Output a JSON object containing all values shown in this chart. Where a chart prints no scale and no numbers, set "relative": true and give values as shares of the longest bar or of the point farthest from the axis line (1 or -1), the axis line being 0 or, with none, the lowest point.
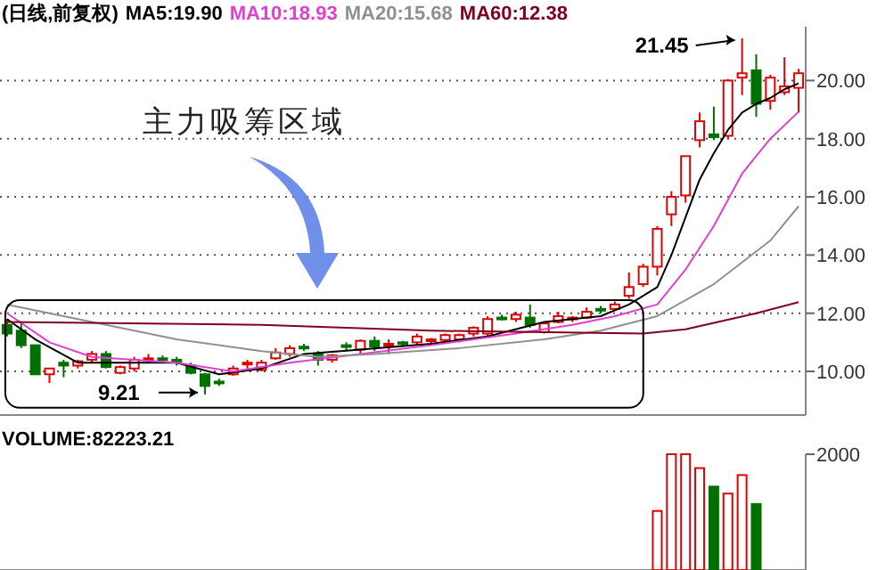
{
  "chart_data": [
    {
      "type": "candlestick",
      "title": "(日线,前复权)",
      "categories": [
        null,
        null,
        null,
        null,
        null,
        null,
        null,
        null,
        null,
        null,
        null,
        null,
        null,
        null,
        null,
        null,
        null,
        null,
        null,
        null,
        null,
        null,
        null,
        null,
        null,
        null,
        null,
        null,
        null,
        null,
        null,
        null,
        null,
        null,
        null,
        null,
        null,
        null,
        null,
        null,
        null,
        null,
        null,
        null,
        null,
        null,
        null,
        null,
        null,
        null,
        null,
        null,
        null,
        null,
        null,
        null,
        null
      ],
      "ohlc": [
        [
          11.6,
          11.8,
          11.2,
          11.3
        ],
        [
          11.4,
          11.7,
          10.8,
          10.9
        ],
        [
          10.9,
          10.9,
          9.9,
          9.9
        ],
        [
          9.9,
          10.1,
          9.6,
          10.1
        ],
        [
          10.3,
          10.4,
          9.8,
          10.2
        ],
        [
          10.2,
          10.4,
          10.1,
          10.35
        ],
        [
          10.4,
          10.7,
          10.3,
          10.6
        ],
        [
          10.6,
          10.7,
          10.1,
          10.15
        ],
        [
          9.95,
          10.2,
          9.9,
          10.15
        ],
        [
          10.1,
          10.5,
          10.0,
          10.4
        ],
        [
          10.4,
          10.6,
          10.3,
          10.45
        ],
        [
          10.45,
          10.55,
          10.3,
          10.4
        ],
        [
          10.4,
          10.5,
          10.2,
          10.35
        ],
        [
          10.2,
          10.3,
          9.9,
          9.95
        ],
        [
          9.9,
          9.95,
          9.21,
          9.5
        ],
        [
          9.65,
          9.75,
          9.5,
          9.6
        ],
        [
          9.9,
          10.2,
          9.85,
          10.1
        ],
        [
          10.25,
          10.4,
          10.1,
          10.3
        ],
        [
          10.05,
          10.4,
          10.0,
          10.3
        ],
        [
          10.45,
          10.8,
          10.4,
          10.65
        ],
        [
          10.6,
          10.9,
          10.5,
          10.8
        ],
        [
          10.85,
          10.95,
          10.7,
          10.8
        ],
        [
          10.6,
          10.7,
          10.2,
          10.4
        ],
        [
          10.4,
          10.6,
          10.3,
          10.55
        ],
        [
          10.9,
          11.0,
          10.7,
          10.85
        ],
        [
          10.75,
          11.1,
          10.6,
          11.05
        ],
        [
          11.05,
          11.2,
          10.7,
          10.85
        ],
        [
          10.9,
          11.1,
          10.6,
          10.95
        ],
        [
          11.0,
          11.05,
          10.85,
          10.95
        ],
        [
          11.0,
          11.3,
          10.9,
          11.2
        ],
        [
          11.05,
          11.15,
          10.95,
          11.1
        ],
        [
          11.08,
          11.3,
          11.0,
          11.25
        ],
        [
          11.1,
          11.3,
          11.0,
          11.25
        ],
        [
          11.3,
          11.55,
          11.2,
          11.5
        ],
        [
          11.3,
          11.9,
          11.2,
          11.8
        ],
        [
          11.85,
          11.95,
          11.75,
          11.8
        ],
        [
          11.8,
          12.05,
          11.7,
          11.95
        ],
        [
          11.85,
          12.3,
          11.5,
          11.6
        ],
        [
          11.35,
          11.7,
          11.3,
          11.65
        ],
        [
          11.7,
          12.05,
          11.65,
          11.9
        ],
        [
          11.8,
          11.9,
          11.7,
          11.85
        ],
        [
          11.85,
          12.2,
          11.8,
          12.05
        ],
        [
          12.15,
          12.25,
          12.0,
          12.1
        ],
        [
          12.15,
          12.4,
          12.1,
          12.3
        ],
        [
          12.6,
          13.4,
          12.5,
          12.9
        ],
        [
          13.0,
          13.7,
          12.9,
          13.6
        ],
        [
          13.6,
          15.0,
          13.3,
          14.9
        ],
        [
          15.4,
          16.2,
          15.0,
          16.0
        ],
        [
          16.05,
          17.4,
          15.8,
          17.4
        ],
        [
          17.95,
          18.9,
          17.7,
          18.6
        ],
        [
          18.15,
          19.1,
          17.95,
          18.05
        ],
        [
          18.1,
          20.05,
          18.0,
          20.0
        ],
        [
          20.1,
          21.45,
          19.5,
          20.25
        ],
        [
          20.35,
          20.9,
          18.75,
          19.2
        ],
        [
          19.3,
          20.2,
          19.0,
          20.1
        ],
        [
          19.6,
          20.8,
          19.5,
          19.8
        ],
        [
          19.75,
          20.4,
          18.9,
          20.25
        ]
      ],
      "series": [
        {
          "name": "MA5:19.90",
          "type": "line",
          "color": "#000000",
          "values": [
            11.8,
            null,
            11.1,
            null,
            null,
            10.3,
            null,
            null,
            null,
            10.3,
            null,
            null,
            10.3,
            null,
            null,
            9.9,
            null,
            null,
            10.1,
            null,
            null,
            10.6,
            null,
            null,
            null,
            10.75,
            null,
            null,
            null,
            null,
            10.95,
            null,
            null,
            null,
            11.2,
            null,
            null,
            null,
            11.7,
            null,
            null,
            null,
            11.9,
            null,
            12.3,
            null,
            12.9,
            14.0,
            15.3,
            16.6,
            17.5,
            18.3,
            18.9,
            19.2,
            19.4,
            19.7,
            19.9
          ]
        },
        {
          "name": "MA10:18.93",
          "type": "line",
          "color": "#e040d0",
          "values": [
            12.0,
            null,
            null,
            11.0,
            null,
            null,
            10.5,
            null,
            null,
            null,
            null,
            null,
            10.3,
            null,
            null,
            null,
            10.0,
            null,
            null,
            null,
            10.3,
            null,
            null,
            null,
            null,
            10.6,
            null,
            null,
            null,
            null,
            10.9,
            null,
            null,
            null,
            null,
            null,
            11.3,
            null,
            null,
            null,
            11.6,
            null,
            null,
            11.9,
            null,
            null,
            12.3,
            null,
            13.5,
            null,
            15.0,
            null,
            16.8,
            null,
            18.0,
            null,
            18.93
          ]
        },
        {
          "name": "MA20:15.68",
          "type": "line",
          "color": "#909090",
          "values": [
            12.3,
            null,
            null,
            null,
            null,
            11.8,
            null,
            null,
            null,
            null,
            null,
            null,
            11.1,
            null,
            null,
            null,
            null,
            null,
            10.7,
            null,
            null,
            null,
            10.5,
            null,
            null,
            null,
            10.6,
            null,
            null,
            null,
            null,
            null,
            10.8,
            null,
            null,
            null,
            null,
            null,
            11.1,
            null,
            null,
            null,
            11.4,
            null,
            null,
            null,
            11.9,
            null,
            null,
            null,
            13.0,
            null,
            null,
            null,
            14.5,
            null,
            15.68
          ]
        },
        {
          "name": "MA60:12.38",
          "type": "line",
          "color": "#800020",
          "values": [
            11.7,
            null,
            null,
            null,
            null,
            null,
            null,
            null,
            null,
            null,
            null,
            null,
            null,
            null,
            null,
            null,
            null,
            null,
            11.6,
            null,
            null,
            null,
            null,
            null,
            null,
            null,
            null,
            null,
            null,
            null,
            11.4,
            null,
            null,
            null,
            null,
            null,
            null,
            null,
            null,
            null,
            null,
            null,
            null,
            null,
            null,
            11.3,
            null,
            null,
            11.45,
            null,
            null,
            null,
            null,
            12.0,
            null,
            null,
            12.38
          ]
        }
      ],
      "ylim": [
        8.5,
        21.85
      ],
      "yticks": [
        {
          "value": 10,
          "label": "10.00"
        },
        {
          "value": 12,
          "label": "12.00"
        },
        {
          "value": 14,
          "label": "14.00"
        },
        {
          "value": 16,
          "label": "16.00"
        },
        {
          "value": 18,
          "label": "18.00"
        },
        {
          "value": 20,
          "label": "20.00"
        }
      ],
      "grid": "y",
      "annotations": [
        "主力吸筹区域",
        "21.45",
        "9.21"
      ]
    },
    {
      "type": "bar",
      "title": "VOLUME:82223.21",
      "categories": [
        null,
        null,
        null,
        null,
        null,
        null,
        null,
        null,
        null,
        null,
        null,
        null,
        null,
        null,
        null,
        null,
        null,
        null,
        null,
        null,
        null,
        null,
        null,
        null,
        null,
        null,
        null,
        null,
        null,
        null,
        null,
        null,
        null,
        null,
        null,
        null,
        null,
        null,
        null,
        null,
        null,
        null,
        null,
        null,
        null,
        null,
        null,
        null,
        null,
        null,
        null,
        null,
        null,
        null,
        null,
        null,
        null
      ],
      "values": [
        null,
        null,
        null,
        null,
        null,
        null,
        null,
        null,
        null,
        null,
        null,
        null,
        null,
        null,
        null,
        null,
        null,
        null,
        null,
        null,
        null,
        null,
        null,
        null,
        null,
        null,
        null,
        null,
        null,
        null,
        null,
        null,
        null,
        null,
        null,
        null,
        null,
        null,
        null,
        null,
        null,
        null,
        null,
        null,
        null,
        null,
        0.51,
        1,
        1,
        0.88,
        0.72,
        0.66,
        0.82,
        0.57,
        null,
        null,
        null
      ],
      "colors": [
        null,
        null,
        null,
        null,
        null,
        null,
        null,
        null,
        null,
        null,
        null,
        null,
        null,
        null,
        null,
        null,
        null,
        null,
        null,
        null,
        null,
        null,
        null,
        null,
        null,
        null,
        null,
        null,
        null,
        null,
        null,
        null,
        null,
        null,
        null,
        null,
        null,
        null,
        null,
        null,
        null,
        null,
        null,
        null,
        null,
        null,
        "#e00000",
        "#e00000",
        "#e00000",
        "#e00000",
        "#007000",
        "#e00000",
        "#e00000",
        "#007000",
        null,
        null,
        null
      ],
      "relative": true,
      "annotations": [
        "2000"
      ]
    }
  ]
}
